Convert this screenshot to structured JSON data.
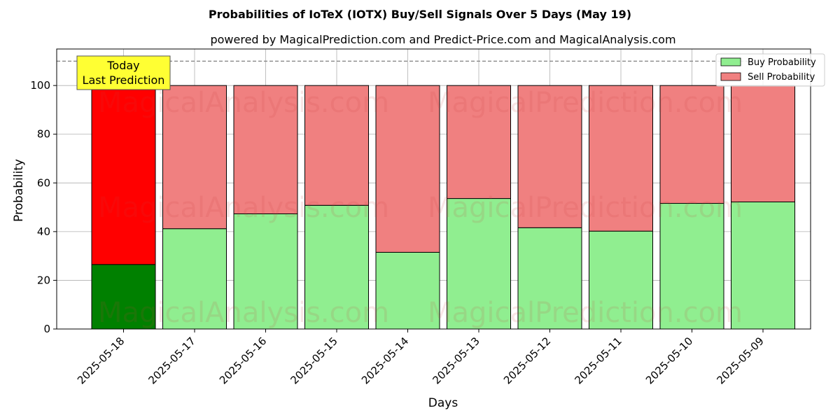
{
  "chart_data": {
    "type": "bar",
    "stacked": true,
    "title": "Probabilities of IoTeX (IOTX) Buy/Sell Signals Over 5 Days (May 19)",
    "subtitle": "powered by MagicalPrediction.com and Predict-Price.com and MagicalAnalysis.com",
    "xlabel": "Days",
    "ylabel": "Probability",
    "ylim": [
      0,
      115
    ],
    "yticks": [
      0,
      20,
      40,
      60,
      80,
      100
    ],
    "reference_line": 110,
    "grid": true,
    "legend_position": "top-right",
    "categories": [
      "2025-05-18",
      "2025-05-17",
      "2025-05-16",
      "2025-05-15",
      "2025-05-14",
      "2025-05-13",
      "2025-05-12",
      "2025-05-11",
      "2025-05-10",
      "2025-05-09"
    ],
    "series": [
      {
        "name": "Buy Probability",
        "values": [
          26.5,
          41.2,
          47.3,
          50.8,
          31.5,
          53.6,
          41.6,
          40.2,
          51.6,
          52.2
        ],
        "color": "#90EE90",
        "highlight_color": "#008000"
      },
      {
        "name": "Sell Probability",
        "values": [
          73.5,
          58.8,
          52.7,
          49.2,
          68.5,
          46.4,
          58.4,
          59.8,
          48.4,
          47.8
        ],
        "color": "#F08080",
        "highlight_color": "#FF0000"
      }
    ],
    "annotation": {
      "lines": [
        "Today",
        "Last Prediction"
      ],
      "background": "#FFFF33"
    },
    "watermarks": [
      "MagicalAnalysis.com",
      "MagicalPrediction.com"
    ]
  }
}
